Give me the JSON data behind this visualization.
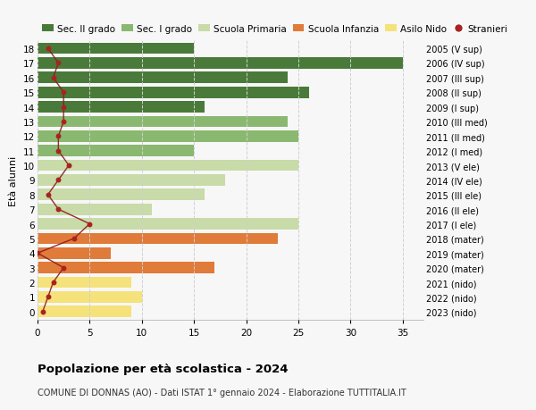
{
  "ages": [
    0,
    1,
    2,
    3,
    4,
    5,
    6,
    7,
    8,
    9,
    10,
    11,
    12,
    13,
    14,
    15,
    16,
    17,
    18
  ],
  "right_labels": [
    "2023 (nido)",
    "2022 (nido)",
    "2021 (nido)",
    "2020 (mater)",
    "2019 (mater)",
    "2018 (mater)",
    "2017 (I ele)",
    "2016 (II ele)",
    "2015 (III ele)",
    "2014 (IV ele)",
    "2013 (V ele)",
    "2012 (I med)",
    "2011 (II med)",
    "2010 (III med)",
    "2009 (I sup)",
    "2008 (II sup)",
    "2007 (III sup)",
    "2006 (IV sup)",
    "2005 (V sup)"
  ],
  "bar_values": [
    9,
    10,
    9,
    17,
    7,
    23,
    25,
    11,
    16,
    18,
    25,
    15,
    25,
    24,
    16,
    26,
    24,
    35,
    15
  ],
  "bar_colors": [
    "#f5e27a",
    "#f5e27a",
    "#f5e27a",
    "#e07b39",
    "#e07b39",
    "#e07b39",
    "#c8dba8",
    "#c8dba8",
    "#c8dba8",
    "#c8dba8",
    "#c8dba8",
    "#8ab870",
    "#8ab870",
    "#8ab870",
    "#4a7a3a",
    "#4a7a3a",
    "#4a7a3a",
    "#4a7a3a",
    "#4a7a3a"
  ],
  "stranieri_values": [
    0.5,
    1,
    1.5,
    2.5,
    0,
    3.5,
    5,
    2,
    1,
    2,
    3,
    2,
    2,
    2.5,
    2.5,
    2.5,
    1.5,
    2,
    1
  ],
  "title": "Popolazione per età scolastica - 2024",
  "subtitle": "COMUNE DI DONNAS (AO) - Dati ISTAT 1° gennaio 2024 - Elaborazione TUTTITALIA.IT",
  "ylabel_left": "Età alunni",
  "legend_items": [
    "Sec. II grado",
    "Sec. I grado",
    "Scuola Primaria",
    "Scuola Infanzia",
    "Asilo Nido",
    "Stranieri"
  ],
  "legend_colors": [
    "#4a7a3a",
    "#8ab870",
    "#c8dba8",
    "#e07b39",
    "#f5e27a",
    "#aa2222"
  ],
  "bg_color": "#f7f7f7",
  "grid_color": "#d0d0d0",
  "xlim": [
    0,
    37
  ],
  "xticks": [
    0,
    5,
    10,
    15,
    20,
    25,
    30,
    35
  ]
}
